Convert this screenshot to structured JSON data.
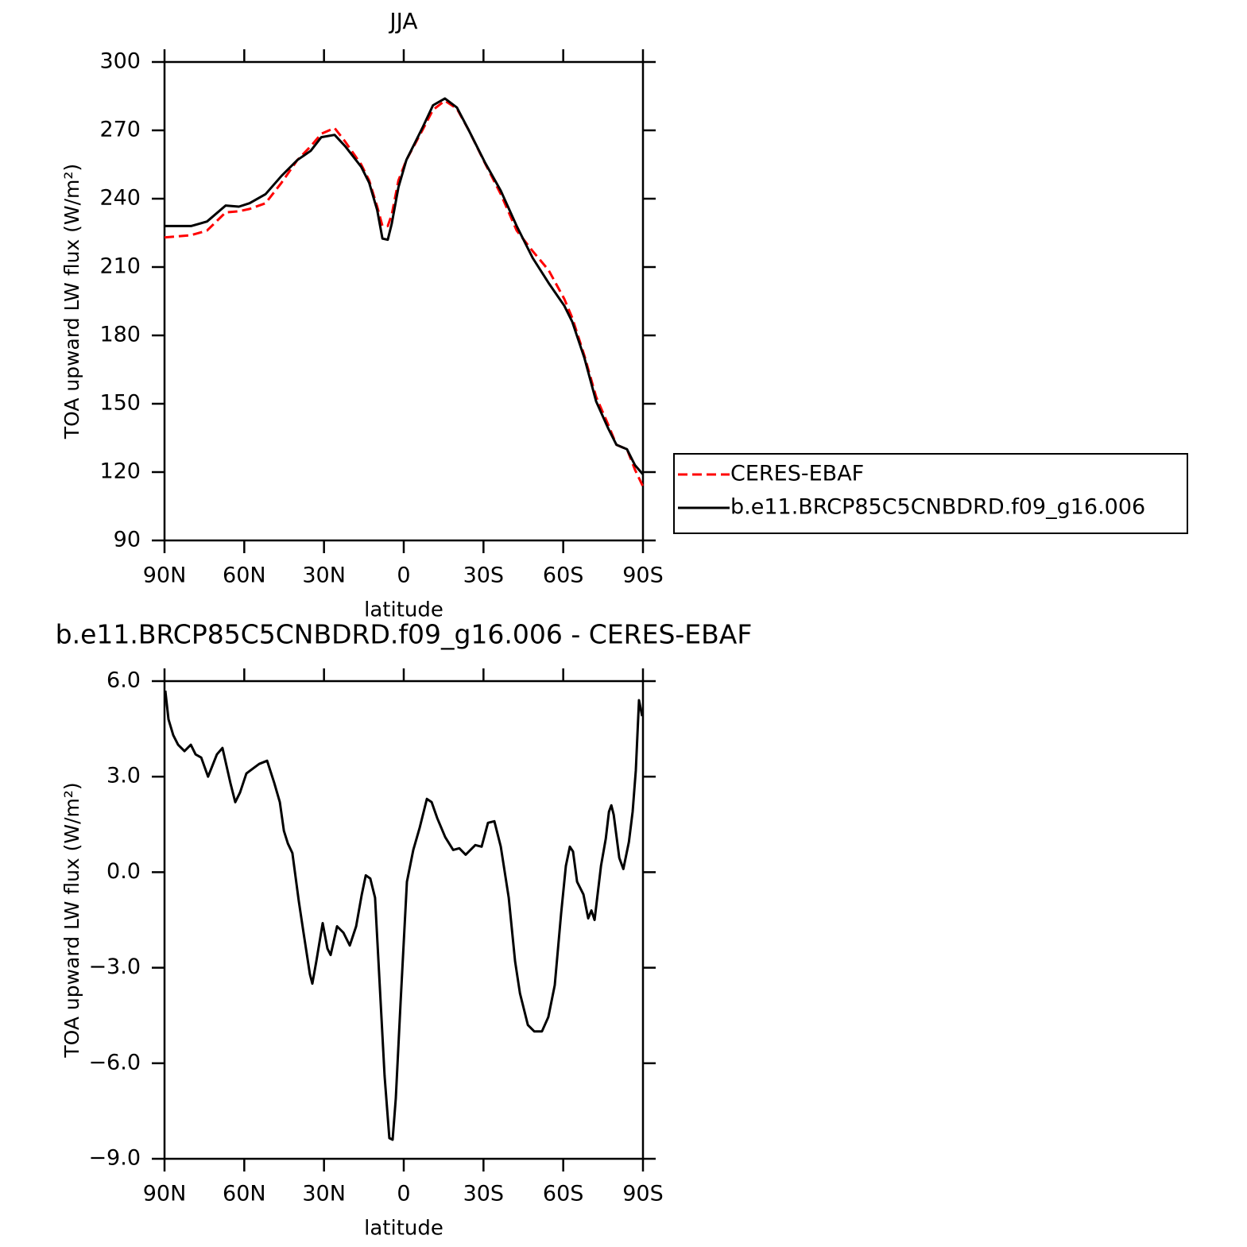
{
  "chart_data": [
    {
      "type": "line",
      "title": "JJA",
      "x_label": "latitude",
      "y_label": "TOA upward LW flux (W/m²)",
      "x": [
        90,
        80,
        74,
        67,
        62,
        58,
        52,
        46,
        40,
        35,
        31,
        26,
        22,
        16,
        13,
        10,
        8,
        6,
        4.5,
        2,
        -1,
        -7,
        -11,
        -15.5,
        -20,
        -24.5,
        -30.5,
        -36.5,
        -42.5,
        -48.5,
        -54.5,
        -60.4,
        -63.4,
        -68,
        -72.4,
        -77,
        -80,
        -84,
        -87,
        -90
      ],
      "xlim": [
        90,
        -90
      ],
      "xticks": [
        {
          "value": 90,
          "label": "90N"
        },
        {
          "value": 60,
          "label": "60N"
        },
        {
          "value": 30,
          "label": "30N"
        },
        0,
        {
          "value": -30,
          "label": "30S"
        },
        {
          "value": -60,
          "label": "60S"
        },
        {
          "value": -90,
          "label": "90S"
        }
      ],
      "ylim": [
        90,
        300
      ],
      "yticks": [
        90,
        120,
        150,
        180,
        210,
        240,
        270,
        300
      ],
      "legend": "right",
      "series": [
        {
          "name": "CERES-EBAF",
          "color": "#ff0000",
          "dash": "dashed",
          "values": [
            223,
            224,
            226,
            234,
            234.5,
            235.5,
            238,
            247,
            257,
            263,
            268.5,
            271,
            265,
            255,
            248,
            236.5,
            228,
            228,
            233,
            248,
            257,
            270,
            279,
            283,
            279.5,
            270,
            255.7,
            242,
            226,
            217,
            208.6,
            196,
            187.7,
            171,
            153,
            140.6,
            132,
            130,
            121,
            113.7
          ]
        },
        {
          "name": "b.e11.BRCP85C5CNBDRD.f09_g16.006",
          "color": "#000000",
          "dash": "solid",
          "values": [
            228,
            228,
            230,
            237,
            236.5,
            238,
            242,
            250,
            257,
            261,
            267,
            268,
            263,
            254,
            247,
            235,
            222.5,
            222,
            229,
            245,
            257,
            271,
            281,
            284,
            280,
            270,
            256,
            243.5,
            228,
            214,
            203,
            193,
            186,
            170,
            151,
            139,
            132,
            130,
            123,
            119
          ]
        }
      ]
    },
    {
      "type": "line",
      "title": "b.e11.BRCP85C5CNBDRD.f09_g16.006 - CERES-EBAF",
      "x_label": "latitude",
      "y_label": "TOA upward LW flux (W/m²)",
      "x": [
        89.7,
        88.5,
        86.7,
        84.9,
        82.5,
        80.1,
        78.3,
        76.2,
        73.6,
        70.3,
        68.2,
        65.2,
        63.4,
        61.6,
        59.2,
        56.8,
        54.4,
        51.4,
        48.7,
        46.6,
        45.1,
        43.6,
        41.9,
        39.5,
        37.7,
        35.3,
        34.4,
        32.9,
        30.5,
        28.7,
        27.5,
        25.1,
        22.7,
        20.3,
        17.9,
        15.8,
        14.3,
        12.6,
        10.8,
        9.0,
        7.2,
        5.4,
        4.2,
        3.0,
        1.2,
        -1.2,
        -3.6,
        -6.0,
        -8.7,
        -10.5,
        -12.6,
        -15.6,
        -18.6,
        -20.9,
        -23.3,
        -26.9,
        -29.3,
        -31.7,
        -34.1,
        -36.5,
        -39.5,
        -41.9,
        -43.7,
        -46.7,
        -49.1,
        -52.0,
        -54.4,
        -56.8,
        -59.2,
        -61.0,
        -62.5,
        -63.7,
        -65.2,
        -67.6,
        -69.4,
        -70.6,
        -71.8,
        -74.2,
        -76.0,
        -77.2,
        -78.1,
        -79.0,
        -81.1,
        -82.6,
        -84.7,
        -86.1,
        -87.3,
        -88.5,
        -89.7
      ],
      "xlim": [
        90,
        -90
      ],
      "xticks": [
        {
          "value": 90,
          "label": "90N"
        },
        {
          "value": 60,
          "label": "60N"
        },
        {
          "value": 30,
          "label": "30N"
        },
        0,
        {
          "value": -30,
          "label": "30S"
        },
        {
          "value": -60,
          "label": "60S"
        },
        {
          "value": -90,
          "label": "90S"
        }
      ],
      "ylim": [
        -9,
        6
      ],
      "yticks": [
        {
          "value": -9,
          "label": "−9.0"
        },
        {
          "value": -6,
          "label": "−6.0"
        },
        {
          "value": -3,
          "label": "−3.0"
        },
        {
          "value": 0,
          "label": "0.0"
        },
        {
          "value": 3,
          "label": "3.0"
        },
        {
          "value": 6,
          "label": "6.0"
        }
      ],
      "series": [
        {
          "color": "#000000",
          "dash": "solid",
          "values": [
            5.7,
            4.8,
            4.3,
            4.0,
            3.8,
            4.0,
            3.7,
            3.6,
            3.0,
            3.7,
            3.9,
            2.8,
            2.2,
            2.5,
            3.1,
            3.25,
            3.4,
            3.5,
            2.8,
            2.2,
            1.3,
            0.9,
            0.6,
            -0.9,
            -1.9,
            -3.2,
            -3.5,
            -2.8,
            -1.6,
            -2.4,
            -2.6,
            -1.7,
            -1.9,
            -2.3,
            -1.7,
            -0.7,
            -0.1,
            -0.2,
            -0.8,
            -3.6,
            -6.4,
            -8.35,
            -8.4,
            -7.1,
            -4.1,
            -0.3,
            0.7,
            1.4,
            2.3,
            2.2,
            1.7,
            1.1,
            0.7,
            0.75,
            0.55,
            0.85,
            0.8,
            1.55,
            1.6,
            0.8,
            -0.8,
            -2.8,
            -3.8,
            -4.8,
            -5.0,
            -5.0,
            -4.55,
            -3.55,
            -1.3,
            0.2,
            0.8,
            0.65,
            -0.3,
            -0.7,
            -1.45,
            -1.2,
            -1.5,
            0.2,
            1.05,
            1.9,
            2.1,
            1.8,
            0.45,
            0.1,
            0.95,
            1.9,
            3.2,
            5.4,
            4.9
          ]
        }
      ]
    }
  ]
}
